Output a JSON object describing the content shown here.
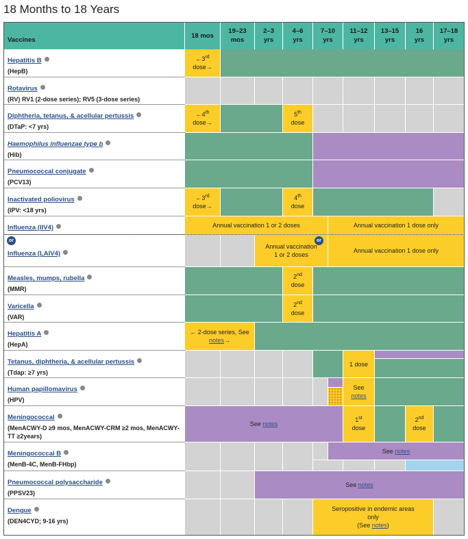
{
  "title": "18 Months to 18 Years",
  "header": {
    "vaccines": "Vaccines",
    "ages": [
      [
        "18 mos"
      ],
      [
        "19–23",
        "mos"
      ],
      [
        "2–3",
        "yrs"
      ],
      [
        "4–6",
        "yrs"
      ],
      [
        "7–10",
        "yrs"
      ],
      [
        "11–12",
        "yrs"
      ],
      [
        "13–15",
        "yrs"
      ],
      [
        "16",
        "yrs"
      ],
      [
        "17–18",
        "yrs"
      ]
    ]
  },
  "badge": "or",
  "rows": [
    {
      "name": "Hepatitis B",
      "detail": "(HepB)",
      "notes": [
        [
          [
            {
              "t": "←3"
            },
            {
              "sup": "rd"
            }
          ],
          [
            {
              "t": "dose→"
            }
          ]
        ]
      ]
    },
    {
      "name": "Rotavirus",
      "detail": "(RV) RV1 (2-dose series); RV5 (3-dose series)",
      "notes": []
    },
    {
      "name": "Diphtheria, tetanus, & acellular pertussis",
      "detail": "(DTaP: <7 yrs)",
      "notes": [
        [
          [
            {
              "t": "←4"
            },
            {
              "sup": "th"
            }
          ],
          [
            {
              "t": "dose→"
            }
          ]
        ],
        [
          [
            {
              "t": "5"
            },
            {
              "sup": "th"
            }
          ],
          [
            {
              "t": "dose"
            }
          ]
        ]
      ]
    },
    {
      "name": "Haemophilus influenzae type b",
      "detail": "(Hib)",
      "notes": []
    },
    {
      "name": "Pneumococcal conjugate",
      "detail": "(PCV13)",
      "notes": []
    },
    {
      "name": "Inactivated poliovirus",
      "detail": "(IPV: <18 yrs)",
      "notes": [
        [
          [
            {
              "t": "←3"
            },
            {
              "sup": "rd"
            }
          ],
          [
            {
              "t": "dose→"
            }
          ]
        ],
        [
          [
            {
              "t": "4"
            },
            {
              "sup": "th"
            }
          ],
          [
            {
              "t": "dose"
            }
          ]
        ]
      ]
    },
    {
      "name": "Influenza (IIV4)",
      "detail": "",
      "notes": [
        [
          [
            {
              "t": "Annual vaccination 1 or 2 doses"
            }
          ]
        ],
        [
          [
            {
              "t": "Annual vaccination 1 dose only"
            }
          ]
        ]
      ]
    },
    {
      "name": "Influenza (LAIV4)",
      "detail": "",
      "notes": [
        [
          [
            {
              "t": "Annual vaccination"
            }
          ],
          [
            {
              "t": "1 or 2 doses"
            }
          ]
        ],
        [
          [
            {
              "t": "Annual vaccination 1 dose only"
            }
          ]
        ]
      ]
    },
    {
      "name": "Measles, mumps, rubella",
      "detail": "(MMR)",
      "notes": [
        [
          [
            {
              "t": "2"
            },
            {
              "sup": "nd"
            }
          ],
          [
            {
              "t": "dose"
            }
          ]
        ]
      ]
    },
    {
      "name": "Varicella",
      "detail": "(VAR)",
      "notes": [
        [
          [
            {
              "t": "2"
            },
            {
              "sup": "nd"
            }
          ],
          [
            {
              "t": "dose"
            }
          ]
        ]
      ]
    },
    {
      "name": "Hepatitis A",
      "detail": "(HepA)",
      "notes": [
        [
          [
            {
              "t": "← 2-dose series, See"
            }
          ],
          [
            {
              "link": "notes"
            },
            {
              "t": "→"
            }
          ]
        ]
      ]
    },
    {
      "name": "Tetanus, diphtheria, & acellular pertussis",
      "detail": "(Tdap: ≥7 yrs)",
      "notes": [
        [
          [
            {
              "t": "1 dose"
            }
          ]
        ]
      ]
    },
    {
      "name": "Human papillomavirus",
      "detail": "(HPV)",
      "notes": [
        [
          [
            {
              "t": "See"
            }
          ],
          [
            {
              "link": "notes"
            }
          ]
        ]
      ]
    },
    {
      "name": "Meningococcal",
      "detail": "(MenACWY-D ≥9 mos, MenACWY-CRM ≥2 mos, MenACWY-TT ≥2years)",
      "notes": [
        [
          [
            {
              "t": "See "
            },
            {
              "link": "notes"
            }
          ]
        ],
        [
          [
            {
              "t": "1"
            },
            {
              "sup": "st"
            }
          ],
          [
            {
              "t": "dose"
            }
          ]
        ],
        [
          [
            {
              "t": "2"
            },
            {
              "sup": "nd"
            }
          ],
          [
            {
              "t": "dose"
            }
          ]
        ]
      ]
    },
    {
      "name": "Meningococcal B",
      "detail": "(MenB-4C, MenB-FHbp)",
      "notes": [
        [
          [
            {
              "t": "See "
            },
            {
              "link": "notes"
            }
          ]
        ]
      ]
    },
    {
      "name": "Pneumococcal polysaccharide",
      "detail": "(PPSV23)",
      "notes": [
        [
          [
            {
              "t": "See "
            },
            {
              "link": "notes"
            }
          ]
        ]
      ]
    },
    {
      "name": "Dengue",
      "detail": "(DEN4CYD; 9-16 yrs)",
      "notes": [
        [
          [
            {
              "t": "Seropositive in endemic areas"
            }
          ],
          [
            {
              "t": "only"
            }
          ],
          [
            {
              "t": "(See "
            },
            {
              "link": "notes"
            },
            {
              "t": ")"
            }
          ]
        ]
      ]
    }
  ]
}
